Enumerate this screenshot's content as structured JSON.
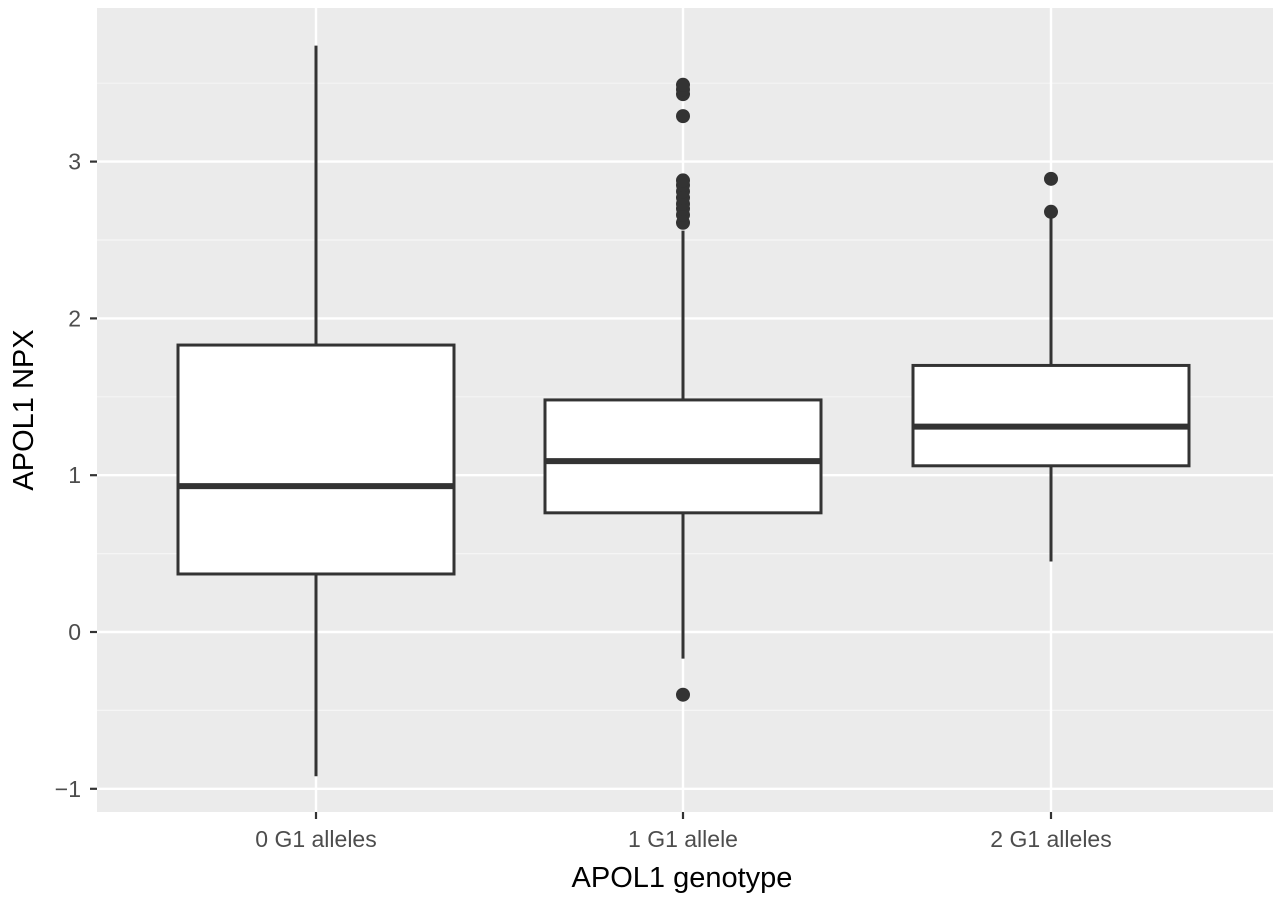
{
  "chart_data": {
    "type": "boxplot",
    "xlabel": "APOL1 genotype",
    "ylabel": "APOL1 NPX",
    "categories": [
      "0 G1 alleles",
      "1 G1 allele",
      "2 G1 alleles"
    ],
    "ylim": [
      -1.15,
      3.98
    ],
    "yticks": [
      -1,
      0,
      1,
      2,
      3
    ],
    "ytick_labels": [
      "−1",
      "0",
      "1",
      "2",
      "3"
    ],
    "grid": true,
    "colors": {
      "panel_background": "#ebebeb",
      "grid_major": "#ffffff",
      "grid_minor": "#f5f5f5",
      "box_fill": "#ffffff",
      "box_stroke": "#333333",
      "outlier": "#333333",
      "tick_mark": "#333333"
    },
    "boxes": [
      {
        "category": "0 G1 alleles",
        "whisker_low": -0.92,
        "q1": 0.37,
        "median": 0.93,
        "q3": 1.83,
        "whisker_high": 3.74,
        "outliers": []
      },
      {
        "category": "1 G1 allele",
        "whisker_low": -0.17,
        "q1": 0.76,
        "median": 1.09,
        "q3": 1.48,
        "whisker_high": 2.56,
        "outliers": [
          -0.4,
          2.61,
          2.66,
          2.7,
          2.73,
          2.77,
          2.81,
          2.85,
          2.88,
          3.29,
          3.43,
          3.46,
          3.49
        ]
      },
      {
        "category": "2 G1 alleles",
        "whisker_low": 0.45,
        "q1": 1.06,
        "median": 1.31,
        "q3": 1.7,
        "whisker_high": 2.66,
        "outliers": [
          2.68,
          2.89
        ]
      }
    ]
  }
}
